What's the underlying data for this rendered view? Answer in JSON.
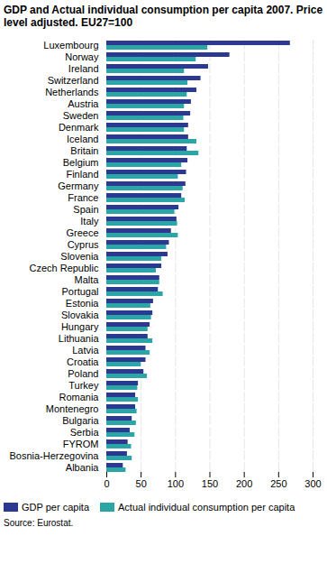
{
  "chart_data": {
    "type": "bar",
    "orientation": "horizontal",
    "title": "GDP and Actual individual consumption per capita 2007. Price level adjusted. EU27=100",
    "caption": "Source: Eurostat.",
    "categories": [
      "Luxembourg",
      "Norway",
      "Ireland",
      "Switzerland",
      "Netherlands",
      "Austria",
      "Sweden",
      "Denmark",
      "Iceland",
      "Britain",
      "Belgium",
      "Finland",
      "Germany",
      "France",
      "Spain",
      "Italy",
      "Greece",
      "Cyprus",
      "Slovenia",
      "Czech Republic",
      "Malta",
      "Portugal",
      "Estonia",
      "Slovakia",
      "Hungary",
      "Lithuania",
      "Latvia",
      "Croatia",
      "Poland",
      "Turkey",
      "Romania",
      "Montenegro",
      "Bulgaria",
      "Serbia",
      "FYROM",
      "Bosnia-Herzegovina",
      "Albania"
    ],
    "series": [
      {
        "name": "GDP per capita",
        "color": "#2b3990",
        "values": [
          267,
          179,
          148,
          137,
          131,
          123,
          122,
          119,
          119,
          117,
          118,
          116,
          115,
          109,
          105,
          102,
          94,
          91,
          89,
          80,
          77,
          75,
          68,
          67,
          63,
          60,
          57,
          57,
          54,
          46,
          42,
          42,
          37,
          34,
          31,
          30,
          24
        ]
      },
      {
        "name": "Actual individual consumption per capita",
        "color": "#2aa6a6",
        "values": [
          147,
          130,
          113,
          118,
          117,
          113,
          112,
          113,
          131,
          134,
          109,
          104,
          111,
          114,
          99,
          103,
          104,
          87,
          80,
          72,
          77,
          82,
          64,
          65,
          60,
          67,
          63,
          50,
          59,
          45,
          46,
          44,
          43,
          41,
          36,
          37,
          28
        ]
      }
    ],
    "xlim": [
      0,
      300
    ],
    "xticks": [
      0,
      50,
      100,
      150,
      200,
      250,
      300
    ],
    "grid": true,
    "legend": "bottom"
  }
}
